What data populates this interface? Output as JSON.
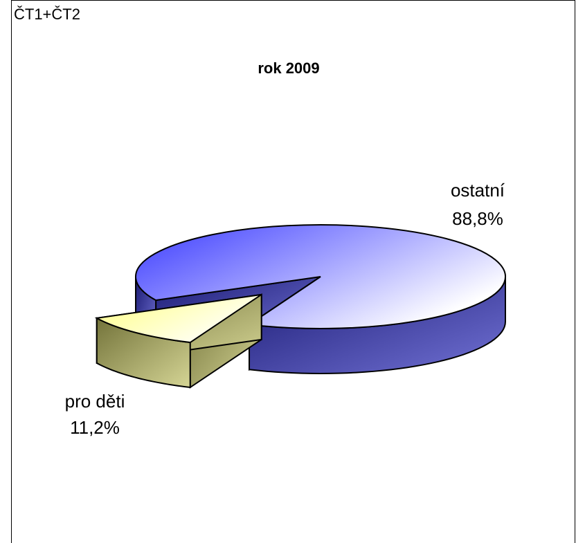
{
  "chart_data": {
    "type": "pie",
    "title": "rok 2009",
    "annotation": "ČT1+ČT2",
    "categories": [
      "ostatní",
      "pro děti"
    ],
    "values": [
      88.8,
      11.2
    ],
    "value_labels": [
      "88,8%",
      "11,2%"
    ],
    "colors": [
      "#3a3aff",
      "#ffff80"
    ]
  }
}
